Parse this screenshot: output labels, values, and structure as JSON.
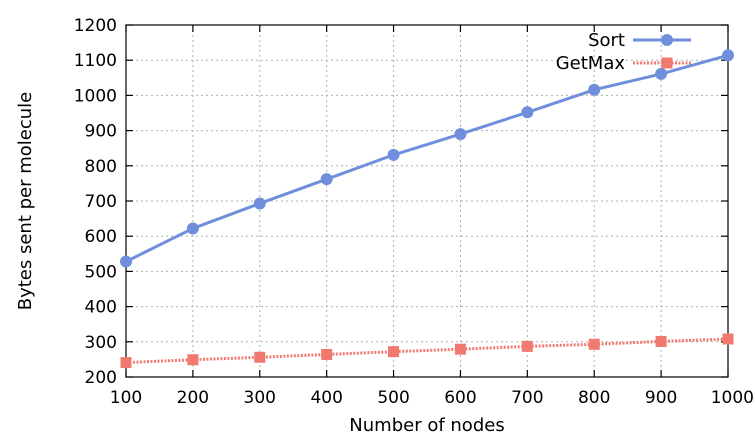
{
  "chart_data": {
    "type": "line",
    "title": "",
    "xlabel": "Number of nodes",
    "ylabel": "Bytes sent per molecule",
    "x": [
      100,
      200,
      300,
      400,
      500,
      600,
      700,
      800,
      900,
      1000
    ],
    "xticks": [
      100,
      200,
      300,
      400,
      500,
      600,
      700,
      800,
      900,
      1000
    ],
    "yticks": [
      200,
      300,
      400,
      500,
      600,
      700,
      800,
      900,
      1000,
      1100,
      1200
    ],
    "xlim": [
      100,
      1000
    ],
    "ylim": [
      200,
      1200
    ],
    "grid": true,
    "legend": "top-right",
    "series": [
      {
        "name": "Sort",
        "color": "#6f8fdc",
        "marker": "circle",
        "line": "solid",
        "values": [
          528,
          622,
          693,
          762,
          831,
          890,
          952,
          1016,
          1061,
          1114
        ]
      },
      {
        "name": "GetMax",
        "color": "#f07a70",
        "marker": "square",
        "line": "dotted",
        "values": [
          241,
          249,
          256,
          264,
          272,
          279,
          287,
          293,
          301,
          308
        ]
      }
    ]
  }
}
